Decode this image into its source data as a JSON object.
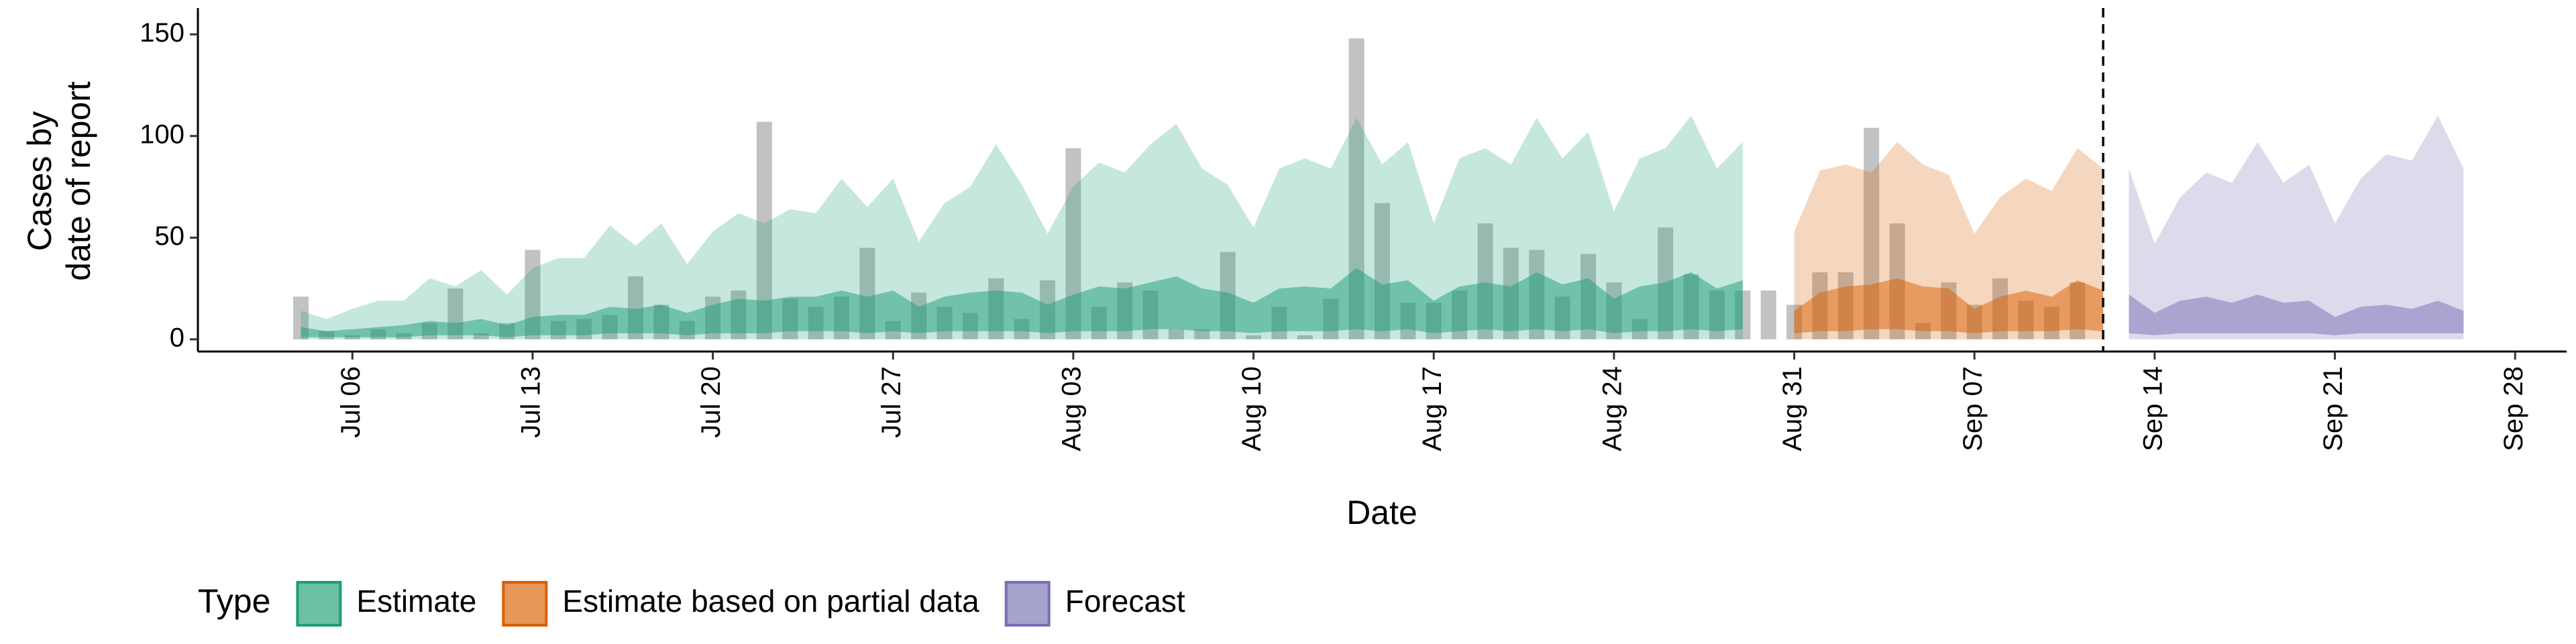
{
  "chart_data": {
    "type": "ribbon",
    "x_label": "Date",
    "y_label": [
      "Cases by",
      "date of report"
    ],
    "legend_title": "Type",
    "xlim": [
      "Jun 30",
      "Sep 30"
    ],
    "xticks": [
      "Jul 06",
      "Jul 13",
      "Jul 20",
      "Jul 27",
      "Aug 03",
      "Aug 10",
      "Aug 17",
      "Aug 24",
      "Aug 31",
      "Sep 07",
      "Sep 14",
      "Sep 21",
      "Sep 28"
    ],
    "ylim": [
      -6,
      157
    ],
    "yticks": [
      0,
      50,
      100,
      150
    ],
    "vline": "Sep 12",
    "bars": {
      "color": "#999999",
      "x": [
        "Jul 04",
        "Jul 05",
        "Jul 06",
        "Jul 07",
        "Jul 08",
        "Jul 09",
        "Jul 10",
        "Jul 11",
        "Jul 12",
        "Jul 13",
        "Jul 14",
        "Jul 15",
        "Jul 16",
        "Jul 17",
        "Jul 18",
        "Jul 19",
        "Jul 20",
        "Jul 21",
        "Jul 22",
        "Jul 23",
        "Jul 24",
        "Jul 25",
        "Jul 26",
        "Jul 27",
        "Jul 28",
        "Jul 29",
        "Jul 30",
        "Jul 31",
        "Aug 01",
        "Aug 02",
        "Aug 03",
        "Aug 04",
        "Aug 05",
        "Aug 06",
        "Aug 07",
        "Aug 08",
        "Aug 09",
        "Aug 10",
        "Aug 11",
        "Aug 12",
        "Aug 13",
        "Aug 14",
        "Aug 15",
        "Aug 16",
        "Aug 17",
        "Aug 18",
        "Aug 19",
        "Aug 20",
        "Aug 21",
        "Aug 22",
        "Aug 23",
        "Aug 24",
        "Aug 25",
        "Aug 26",
        "Aug 27",
        "Aug 28",
        "Aug 29",
        "Aug 30",
        "Aug 31",
        "Sep 01",
        "Sep 02",
        "Sep 03",
        "Sep 04",
        "Sep 05",
        "Sep 06",
        "Sep 07",
        "Sep 08",
        "Sep 09",
        "Sep 10",
        "Sep 11"
      ],
      "values": [
        21,
        4,
        2,
        5,
        3,
        8,
        25,
        3,
        8,
        44,
        9,
        10,
        12,
        31,
        17,
        9,
        21,
        24,
        107,
        20,
        16,
        21,
        45,
        9,
        23,
        16,
        13,
        30,
        10,
        29,
        94,
        16,
        28,
        24,
        5,
        5,
        43,
        2,
        16,
        2,
        20,
        148,
        67,
        18,
        18,
        24,
        57,
        45,
        44,
        21,
        42,
        28,
        10,
        55,
        32,
        24,
        24,
        24,
        17,
        33,
        33,
        104,
        57,
        8,
        28,
        17,
        30,
        19,
        16,
        28
      ]
    },
    "series": [
      {
        "name": "Estimate",
        "color": "#1b9e77",
        "x": [
          "Jul 04",
          "Jul 05",
          "Jul 06",
          "Jul 07",
          "Jul 08",
          "Jul 09",
          "Jul 10",
          "Jul 11",
          "Jul 12",
          "Jul 13",
          "Jul 14",
          "Jul 15",
          "Jul 16",
          "Jul 17",
          "Jul 18",
          "Jul 19",
          "Jul 20",
          "Jul 21",
          "Jul 22",
          "Jul 23",
          "Jul 24",
          "Jul 25",
          "Jul 26",
          "Jul 27",
          "Jul 28",
          "Jul 29",
          "Jul 30",
          "Jul 31",
          "Aug 01",
          "Aug 02",
          "Aug 03",
          "Aug 04",
          "Aug 05",
          "Aug 06",
          "Aug 07",
          "Aug 08",
          "Aug 09",
          "Aug 10",
          "Aug 11",
          "Aug 12",
          "Aug 13",
          "Aug 14",
          "Aug 15",
          "Aug 16",
          "Aug 17",
          "Aug 18",
          "Aug 19",
          "Aug 20",
          "Aug 21",
          "Aug 22",
          "Aug 23",
          "Aug 24",
          "Aug 25",
          "Aug 26",
          "Aug 27",
          "Aug 28",
          "Aug 29"
        ],
        "upper_90": [
          14,
          10,
          15,
          19,
          19,
          30,
          26,
          34,
          22,
          35,
          40,
          40,
          56,
          46,
          57,
          37,
          53,
          62,
          57,
          64,
          62,
          79,
          65,
          79,
          48,
          67,
          75,
          96,
          76,
          52,
          75,
          87,
          82,
          96,
          106,
          84,
          76,
          55,
          84,
          89,
          84,
          109,
          86,
          97,
          57,
          89,
          94,
          86,
          109,
          89,
          102,
          63,
          89,
          94,
          110,
          84,
          97
        ],
        "lower_90": [
          0,
          0,
          0,
          0,
          0,
          0,
          0,
          0,
          0,
          0,
          0,
          0,
          0,
          0,
          0,
          0,
          0,
          0,
          0,
          0,
          0,
          0,
          0,
          0,
          0,
          0,
          0,
          0,
          0,
          0,
          0,
          0,
          0,
          0,
          0,
          0,
          0,
          0,
          0,
          0,
          0,
          0,
          0,
          0,
          0,
          0,
          0,
          0,
          0,
          0,
          0,
          0,
          0,
          0,
          0,
          0,
          0
        ],
        "upper_50": [
          6,
          4,
          5,
          6,
          7,
          9,
          8,
          10,
          7,
          11,
          12,
          12,
          16,
          15,
          17,
          13,
          17,
          20,
          19,
          21,
          21,
          24,
          21,
          24,
          16,
          21,
          23,
          24,
          23,
          17,
          22,
          26,
          25,
          28,
          31,
          25,
          23,
          18,
          25,
          26,
          25,
          35,
          27,
          29,
          19,
          26,
          28,
          26,
          33,
          27,
          30,
          20,
          26,
          28,
          33,
          25,
          29
        ],
        "lower_50": [
          1,
          1,
          1,
          1,
          1,
          2,
          2,
          2,
          1,
          2,
          2,
          2,
          3,
          3,
          3,
          2,
          3,
          3,
          3,
          4,
          4,
          4,
          3,
          4,
          3,
          4,
          4,
          4,
          4,
          3,
          4,
          4,
          4,
          5,
          5,
          4,
          4,
          3,
          4,
          4,
          4,
          5,
          4,
          5,
          3,
          4,
          5,
          4,
          5,
          4,
          5,
          3,
          4,
          4,
          5,
          4,
          5
        ]
      },
      {
        "name": "Estimate based on partial data",
        "color": "#d95f02",
        "x": [
          "Aug 31",
          "Sep 01",
          "Sep 02",
          "Sep 03",
          "Sep 04",
          "Sep 05",
          "Sep 06",
          "Sep 07",
          "Sep 08",
          "Sep 09",
          "Sep 10",
          "Sep 11",
          "Sep 12"
        ],
        "upper_90": [
          53,
          83,
          86,
          82,
          97,
          86,
          81,
          52,
          70,
          79,
          73,
          94,
          84
        ],
        "lower_90": [
          0,
          0,
          0,
          0,
          0,
          0,
          0,
          0,
          0,
          0,
          0,
          0,
          0
        ],
        "upper_50": [
          14,
          23,
          26,
          27,
          30,
          26,
          25,
          15,
          21,
          24,
          21,
          29,
          24
        ],
        "lower_50": [
          3,
          4,
          4,
          5,
          5,
          4,
          4,
          3,
          4,
          4,
          4,
          5,
          4
        ]
      },
      {
        "name": "Forecast",
        "color": "#7570b3",
        "x": [
          "Sep 13",
          "Sep 14",
          "Sep 15",
          "Sep 16",
          "Sep 17",
          "Sep 18",
          "Sep 19",
          "Sep 20",
          "Sep 21",
          "Sep 22",
          "Sep 23",
          "Sep 24",
          "Sep 25",
          "Sep 26"
        ],
        "upper_90": [
          84,
          47,
          70,
          82,
          77,
          97,
          77,
          86,
          57,
          79,
          91,
          88,
          110,
          84
        ],
        "lower_90": [
          0,
          0,
          0,
          0,
          0,
          0,
          0,
          0,
          0,
          0,
          0,
          0,
          0,
          0
        ],
        "upper_50": [
          22,
          13,
          19,
          21,
          18,
          22,
          18,
          19,
          11,
          16,
          17,
          15,
          19,
          14
        ],
        "lower_50": [
          3,
          2,
          3,
          3,
          3,
          3,
          3,
          3,
          2,
          3,
          3,
          3,
          3,
          3
        ]
      }
    ]
  }
}
